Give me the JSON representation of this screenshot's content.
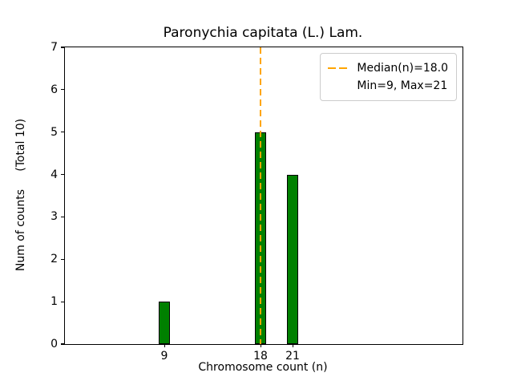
{
  "chart_data": {
    "type": "bar",
    "title": "Paronychia capitata (L.) Lam.",
    "xlabel": "Chromosome count (n)",
    "ylabel": "Num of counts     (Total 10)",
    "bars": [
      {
        "x": 9,
        "count": 1
      },
      {
        "x": 18,
        "count": 5
      },
      {
        "x": 21,
        "count": 4
      }
    ],
    "bar_width": 1.0,
    "bar_color": "#008000",
    "bar_edge_color": "#000000",
    "xlim": [
      -0.3,
      36.9
    ],
    "ylim": [
      0,
      7
    ],
    "xticks": [
      9,
      18,
      21
    ],
    "yticks": [
      0,
      1,
      2,
      3,
      4,
      5,
      6,
      7
    ],
    "median": 18.0,
    "median_line_color": "#FFA500",
    "legend": {
      "entries": [
        "Median(n)=18.0",
        "Min=9, Max=21"
      ],
      "position": "upper right"
    },
    "total_counts": 10,
    "min": 9,
    "max": 21,
    "grid": false
  }
}
